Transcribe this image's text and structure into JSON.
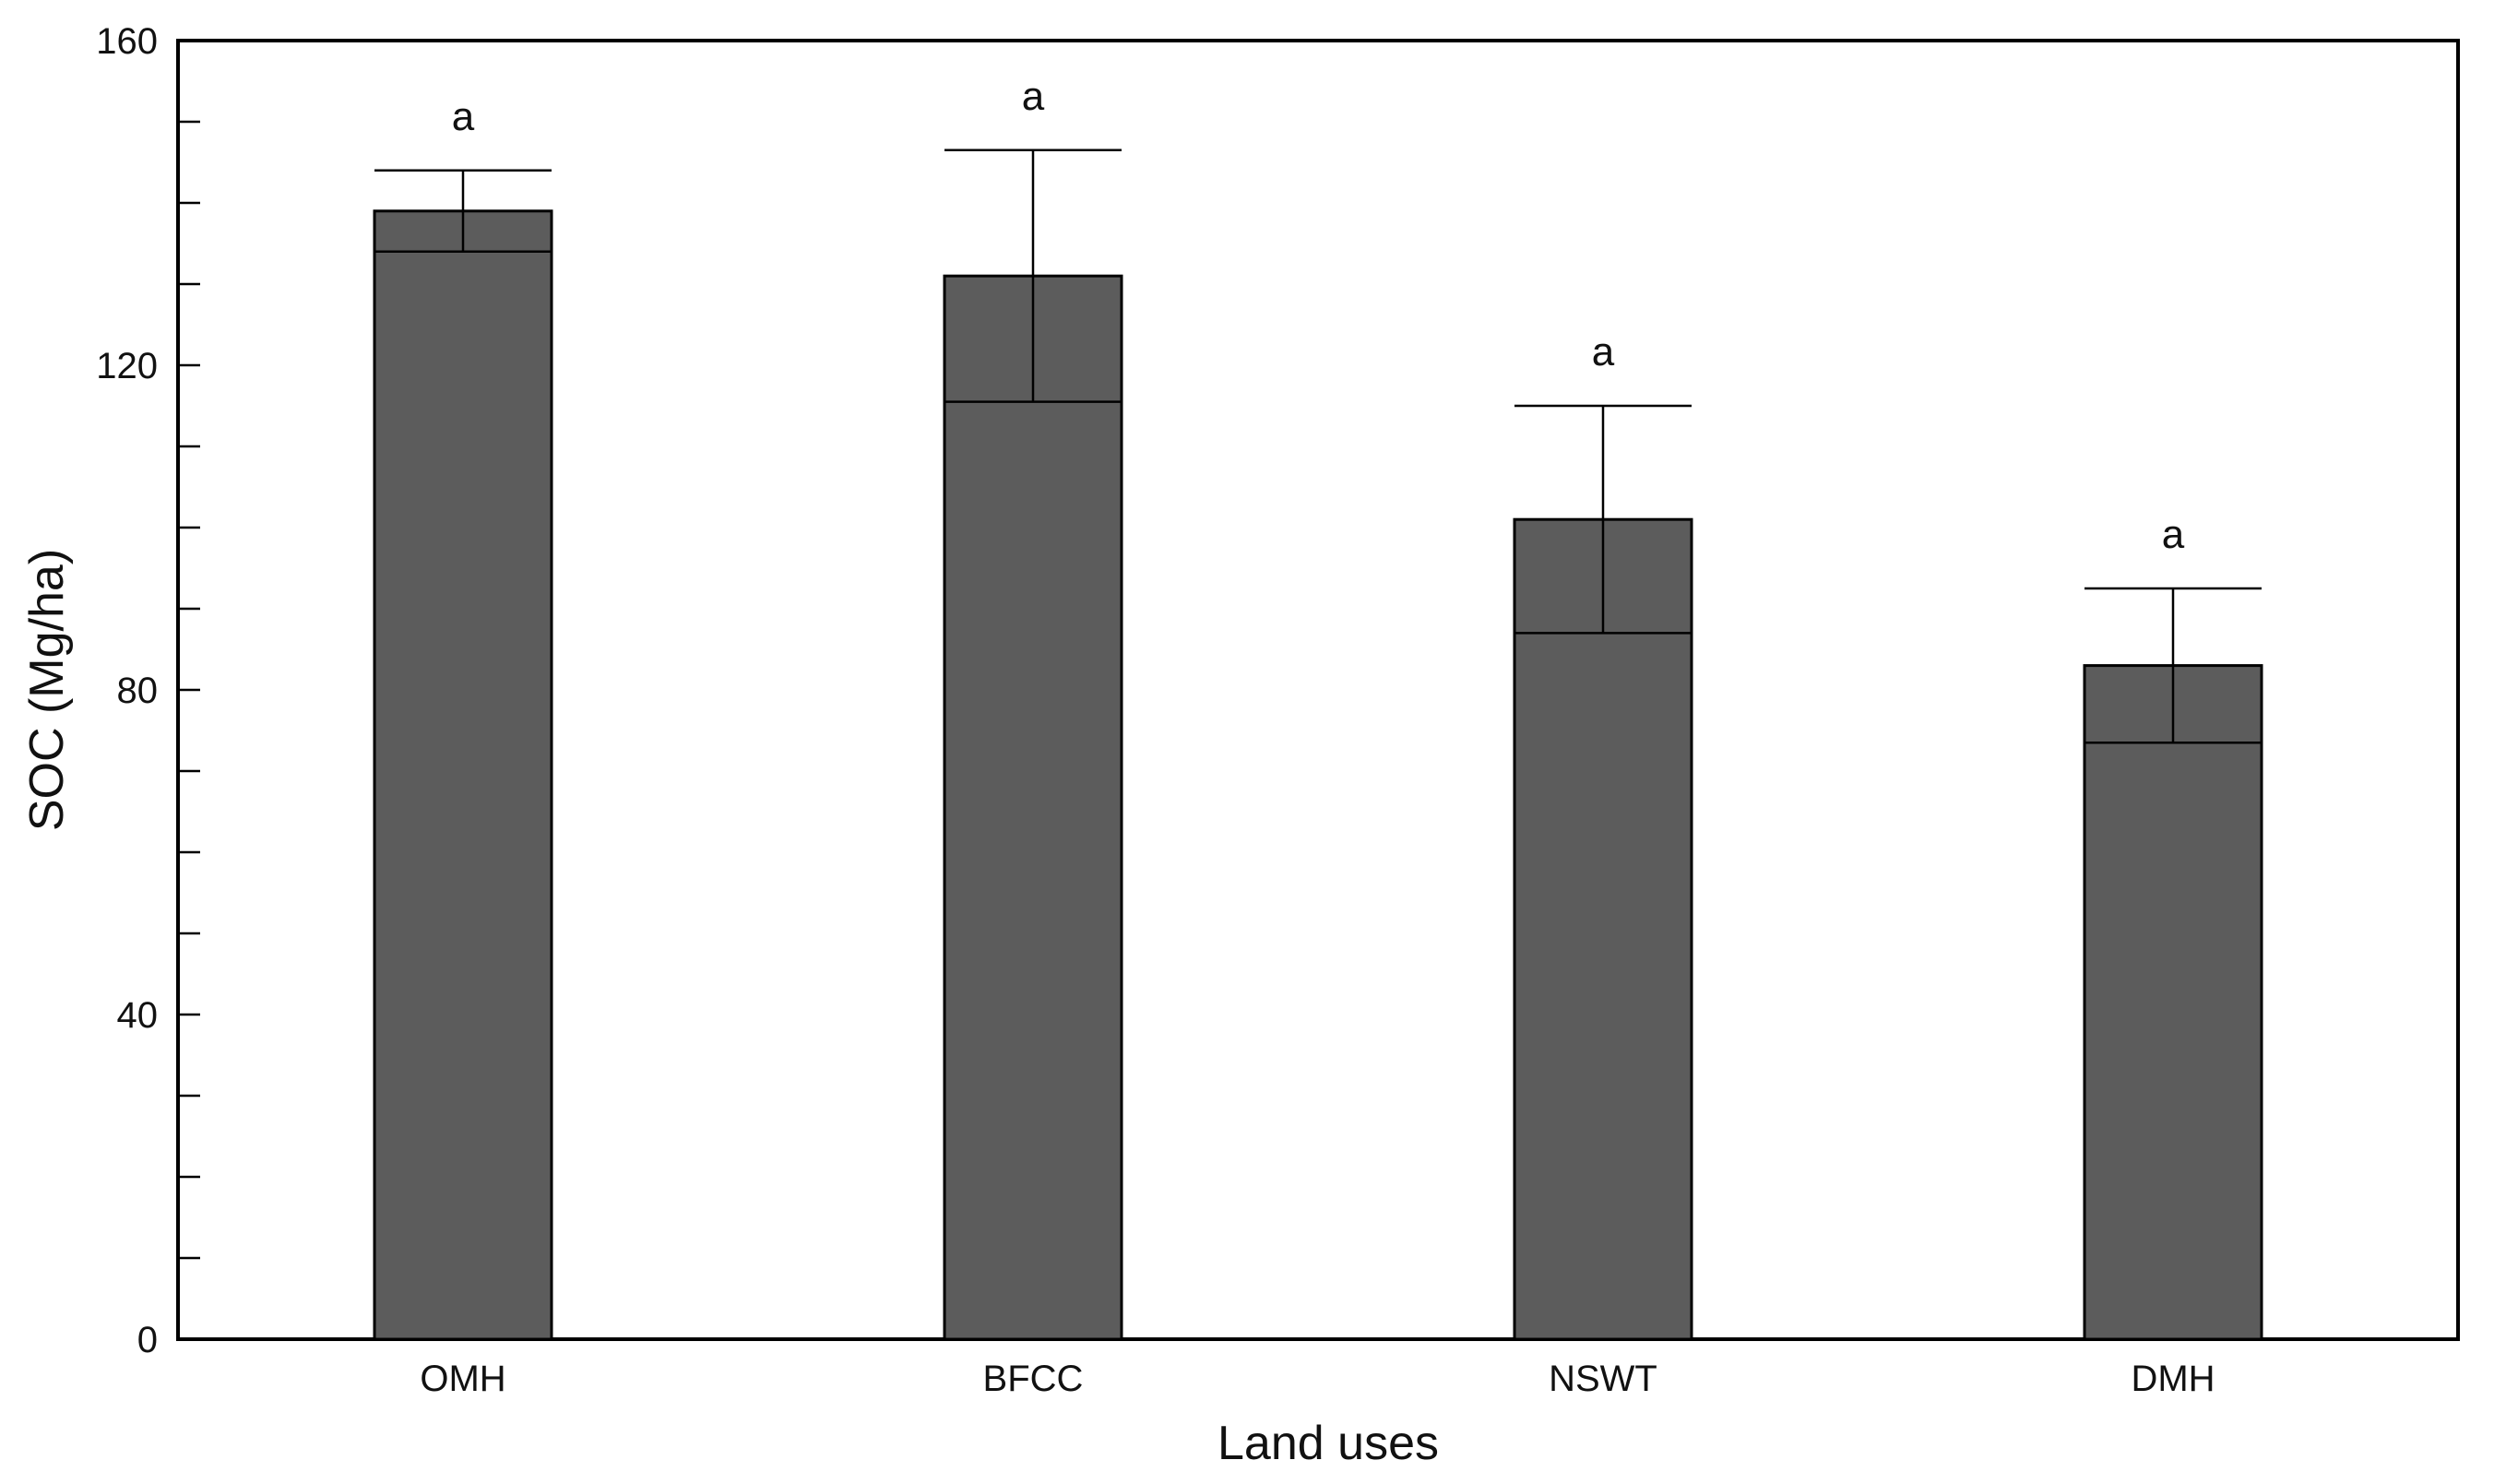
{
  "chart_data": {
    "type": "bar",
    "title": "",
    "xlabel": "Land uses",
    "ylabel": "SOC (Mg/ha)",
    "ylim": [
      0,
      160
    ],
    "yticks": [
      0,
      40,
      80,
      120,
      160
    ],
    "y_minor_step": 10,
    "grid": false,
    "legend": "none",
    "categories": [
      "OMH",
      "BFCC",
      "NSWT",
      "DMH"
    ],
    "values": [
      139,
      131,
      101,
      83
    ],
    "errors": [
      5,
      15.5,
      14,
      9.5
    ],
    "significance_labels": [
      "a",
      "a",
      "a",
      "a"
    ],
    "colors": {
      "bar": "#5c5c5c",
      "stroke": "#000000"
    }
  }
}
